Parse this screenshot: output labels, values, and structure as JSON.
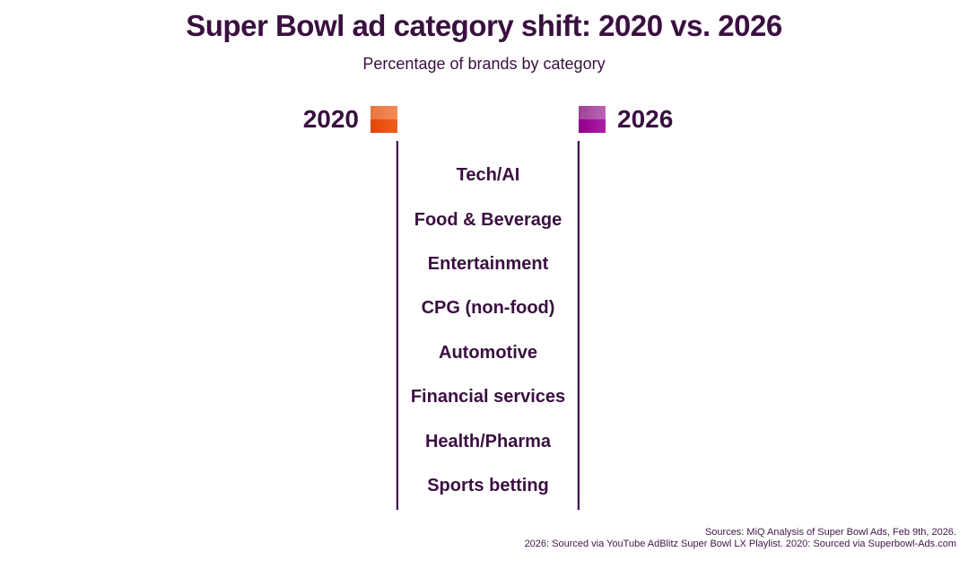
{
  "header": {
    "title": "Super Bowl ad category shift: 2020 vs. 2026",
    "subtitle": "Percentage of brands by category"
  },
  "legend": {
    "left": {
      "label": "2020",
      "swatch_color_top": "#F57D45",
      "swatch_color_bottom": "#F04B04"
    },
    "right": {
      "label": "2026",
      "swatch_color_top": "#B44FAE",
      "swatch_color_bottom": "#A4009C"
    }
  },
  "chart_data": {
    "type": "bar",
    "variant": "diverging two-sided (tornado/butterfly) bar chart; bars not yet drawn in this frame — only the two baselines, legend and category labels are rendered",
    "title": "Super Bowl ad category shift: 2020 vs. 2026",
    "subtitle": "Percentage of brands by category",
    "categories": [
      "Tech/AI",
      "Food & Beverage",
      "Entertainment",
      "CPG (non-food)",
      "Automotive",
      "Financial services",
      "Health/Pharma",
      "Sports betting"
    ],
    "series": [
      {
        "name": "2020",
        "side": "left",
        "color": "#F04B04"
      },
      {
        "name": "2026",
        "side": "right",
        "color": "#A4009C"
      }
    ],
    "values_visible": false,
    "axis_color": "#3E1548",
    "legend_position": "top, flanking the two baselines",
    "grid": false
  },
  "footer": {
    "source_line1": "Sources: MiQ Analysis of Super Bowl Ads, Feb 9th, 2026.",
    "source_line2": "2026: Sourced via YouTube AdBlitz Super Bowl LX Playlist. 2020: Sourced via Superbowl-Ads.com"
  },
  "colors": {
    "text": "#3A1040",
    "accent_orange": "#F04B04",
    "accent_magenta": "#A4009C",
    "background": "#FFFFFF"
  }
}
